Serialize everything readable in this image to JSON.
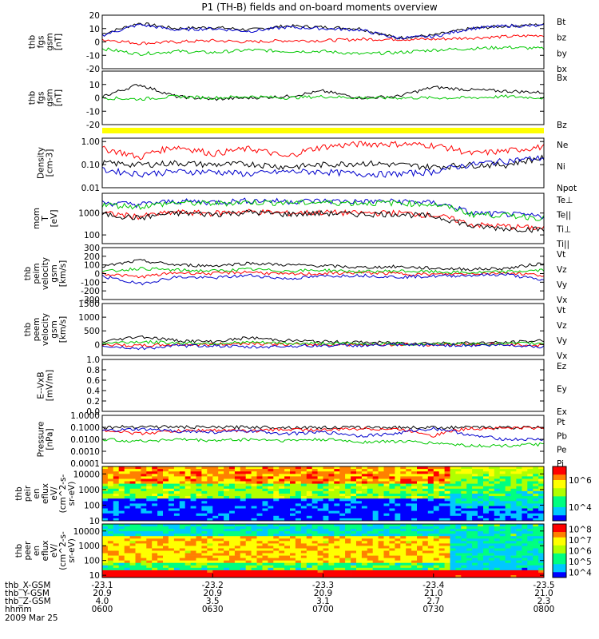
{
  "title": "P1 (TH-B) fields and on-board moments overview",
  "date": "2009 Mar 25",
  "colors": {
    "black": "#000000",
    "red": "#ff0000",
    "green": "#00c800",
    "blue": "#0000cc",
    "yellow": "#ffff00"
  },
  "chart_data": [
    {
      "id": "p1",
      "type": "line",
      "ylabel": [
        "thb",
        "fgs",
        "gsm",
        "[nT]"
      ],
      "ylim": [
        -20,
        20
      ],
      "yticks": [
        -20,
        -10,
        0,
        10,
        20
      ],
      "x": [
        "0600",
        "0610",
        "0620",
        "0630",
        "0640",
        "0650",
        "0700",
        "0710",
        "0720",
        "0730",
        "0740",
        "0750",
        "0800"
      ],
      "series": [
        {
          "name": "Bt",
          "color": "#000000",
          "values": [
            6,
            14,
            10,
            11,
            9,
            12,
            11,
            10,
            3,
            5,
            10,
            12,
            13
          ]
        },
        {
          "name": "bz",
          "color": "#ff0000",
          "values": [
            2,
            -1,
            0,
            1,
            0,
            1,
            1,
            2,
            2,
            2,
            3,
            4,
            5
          ]
        },
        {
          "name": "by",
          "color": "#00c800",
          "values": [
            -5,
            -9,
            -7,
            -8,
            -6,
            -7,
            -7,
            -9,
            -8,
            -6,
            -5,
            -4,
            -5
          ]
        },
        {
          "name": "bx",
          "color": "#0000cc",
          "values": [
            5,
            13,
            9,
            10,
            8,
            11,
            10,
            9,
            3,
            4,
            10,
            12,
            12
          ]
        }
      ]
    },
    {
      "id": "p2",
      "type": "line",
      "ylabel": [
        "thb",
        "fgs",
        "gsm",
        "[nT]"
      ],
      "ylim": [
        -20,
        20
      ],
      "yticks": [
        -20,
        -10,
        0,
        10
      ],
      "x": [
        "0600",
        "0610",
        "0620",
        "0630",
        "0640",
        "0650",
        "0700",
        "0710",
        "0720",
        "0730",
        "0740",
        "0750",
        "0800"
      ],
      "series": [
        {
          "name": "Bx",
          "color": "#000000",
          "values": [
            1,
            10,
            1,
            -1,
            0,
            1,
            5,
            0,
            1,
            8,
            6,
            5,
            4
          ]
        },
        {
          "name": "Bz",
          "color": "#00c800",
          "values": [
            0,
            -1,
            1,
            0,
            1,
            0,
            1,
            0,
            0,
            0,
            0,
            1,
            0
          ]
        }
      ]
    },
    {
      "id": "p3",
      "type": "line",
      "ylabel": [
        "Density",
        "[cm-3]"
      ],
      "log": true,
      "ylim": [
        0.01,
        1.4
      ],
      "yticks": [
        0.01,
        0.1,
        1.0
      ],
      "ytick_labels": [
        "0.01",
        "0.10",
        "1.00"
      ],
      "x": [
        "0600",
        "0610",
        "0620",
        "0630",
        "0640",
        "0650",
        "0700",
        "0710",
        "0720",
        "0730",
        "0740",
        "0750",
        "0800"
      ],
      "series": [
        {
          "name": "Ne",
          "color": "#ff0000",
          "values": [
            0.5,
            0.2,
            0.6,
            0.3,
            0.5,
            0.2,
            0.6,
            0.8,
            0.8,
            0.7,
            0.3,
            0.4,
            0.6
          ]
        },
        {
          "name": "Ni",
          "color": "#000000",
          "values": [
            0.12,
            0.1,
            0.12,
            0.1,
            0.11,
            0.08,
            0.1,
            0.12,
            0.1,
            0.08,
            0.1,
            0.1,
            0.2
          ]
        },
        {
          "name": "Npot",
          "color": "#0000cc",
          "values": [
            0.06,
            0.04,
            0.05,
            0.05,
            0.04,
            0.05,
            0.05,
            0.04,
            0.04,
            0.05,
            0.1,
            0.15,
            0.2
          ]
        }
      ]
    },
    {
      "id": "p4",
      "type": "line",
      "ylabel": [
        "mom",
        "T",
        "[eV]"
      ],
      "log": true,
      "ylim": [
        40,
        8000
      ],
      "yticks": [
        100,
        1000
      ],
      "ytick_labels": [
        "100",
        "1000"
      ],
      "x": [
        "0600",
        "0610",
        "0620",
        "0630",
        "0640",
        "0650",
        "0700",
        "0710",
        "0720",
        "0730",
        "0740",
        "0750",
        "0800"
      ],
      "series": [
        {
          "name": "Te⊥",
          "color": "#ff0000",
          "values": [
            1000,
            700,
            1100,
            1000,
            1200,
            1000,
            1100,
            1000,
            1050,
            800,
            300,
            250,
            200
          ]
        },
        {
          "name": "Te||",
          "color": "#000000",
          "values": [
            900,
            600,
            1000,
            900,
            1100,
            900,
            1000,
            900,
            950,
            700,
            250,
            200,
            180
          ]
        },
        {
          "name": "Ti⊥",
          "color": "#0000cc",
          "values": [
            3000,
            2500,
            3500,
            3200,
            3800,
            3500,
            3600,
            3400,
            3500,
            3000,
            1000,
            900,
            700
          ]
        },
        {
          "name": "Ti||",
          "color": "#00c800",
          "values": [
            2500,
            2000,
            3000,
            2800,
            3200,
            3000,
            3100,
            2900,
            3000,
            2500,
            900,
            800,
            600
          ]
        }
      ]
    },
    {
      "id": "p5",
      "type": "line",
      "ylabel": [
        "thb",
        "peim",
        "velocity",
        "gsm",
        "[km/s]"
      ],
      "ylim": [
        -300,
        300
      ],
      "yticks": [
        -300,
        -200,
        -100,
        0,
        100,
        200,
        300
      ],
      "x": [
        "0600",
        "0610",
        "0620",
        "0630",
        "0640",
        "0650",
        "0700",
        "0710",
        "0720",
        "0730",
        "0740",
        "0750",
        "0800"
      ],
      "series": [
        {
          "name": "Vt",
          "color": "#000000",
          "values": [
            80,
            150,
            100,
            90,
            120,
            100,
            90,
            70,
            80,
            60,
            50,
            60,
            120
          ]
        },
        {
          "name": "Vz",
          "color": "#ff0000",
          "values": [
            0,
            -40,
            10,
            0,
            20,
            -10,
            0,
            10,
            0,
            -10,
            0,
            10,
            -20
          ]
        },
        {
          "name": "Vy",
          "color": "#00c800",
          "values": [
            20,
            60,
            40,
            30,
            50,
            30,
            40,
            20,
            30,
            20,
            10,
            20,
            40
          ]
        },
        {
          "name": "Vx",
          "color": "#0000cc",
          "values": [
            -30,
            -120,
            -40,
            -50,
            -20,
            -60,
            -30,
            -20,
            -40,
            -30,
            -20,
            -10,
            -80
          ]
        }
      ]
    },
    {
      "id": "p6",
      "type": "line",
      "ylabel": [
        "thb",
        "peem",
        "velocity",
        "gsm",
        "[km/s]"
      ],
      "ylim": [
        -400,
        1500
      ],
      "yticks": [
        0,
        500,
        1000,
        1500
      ],
      "x": [
        "0600",
        "0610",
        "0620",
        "0630",
        "0640",
        "0650",
        "0700",
        "0710",
        "0720",
        "0730",
        "0740",
        "0750",
        "0800"
      ],
      "series": [
        {
          "name": "Vt",
          "color": "#000000",
          "values": [
            100,
            300,
            150,
            100,
            250,
            150,
            100,
            80,
            60,
            50,
            60,
            70,
            150
          ]
        },
        {
          "name": "Vz",
          "color": "#ff0000",
          "values": [
            0,
            -50,
            0,
            0,
            50,
            0,
            0,
            0,
            0,
            0,
            0,
            0,
            -30
          ]
        },
        {
          "name": "Vy",
          "color": "#00c800",
          "values": [
            50,
            100,
            60,
            40,
            80,
            40,
            40,
            30,
            20,
            20,
            20,
            30,
            50
          ]
        },
        {
          "name": "Vx",
          "color": "#0000cc",
          "values": [
            -50,
            -150,
            -50,
            -40,
            -100,
            -60,
            -40,
            -30,
            -20,
            -20,
            -30,
            -20,
            -80
          ]
        }
      ]
    },
    {
      "id": "p7",
      "type": "line",
      "ylabel": [
        "E--VxB",
        "[mV/m]"
      ],
      "ylim": [
        0,
        1.0
      ],
      "yticks": [
        0,
        0.2,
        0.4,
        0.6,
        0.8,
        1.0
      ],
      "ytick_labels": [
        "0.0",
        "0.2",
        "0.4",
        "0.6",
        "0.8",
        "1.0"
      ],
      "x": [],
      "series": [
        {
          "name": "Ez",
          "color": "#ff0000",
          "values": []
        },
        {
          "name": "Ey",
          "color": "#00c800",
          "values": []
        },
        {
          "name": "Ex",
          "color": "#0000cc",
          "values": []
        }
      ]
    },
    {
      "id": "p8",
      "type": "line",
      "ylabel": [
        "Pressure",
        "[nPa]"
      ],
      "log": true,
      "ylim": [
        0.0001,
        1.0
      ],
      "yticks": [
        0.0001,
        0.001,
        0.01,
        0.1,
        1.0
      ],
      "ytick_labels": [
        "0.0001",
        "0.0010",
        "0.0100",
        "0.1000",
        "1.0000"
      ],
      "x": [
        "0600",
        "0610",
        "0620",
        "0630",
        "0640",
        "0650",
        "0700",
        "0710",
        "0720",
        "0730",
        "0740",
        "0750",
        "0800"
      ],
      "series": [
        {
          "name": "Pt",
          "color": "#000000",
          "values": [
            0.1,
            0.12,
            0.11,
            0.1,
            0.11,
            0.1,
            0.1,
            0.1,
            0.1,
            0.1,
            0.1,
            0.1,
            0.1
          ]
        },
        {
          "name": "Pb",
          "color": "#ff0000",
          "values": [
            0.06,
            0.03,
            0.05,
            0.06,
            0.05,
            0.07,
            0.06,
            0.08,
            0.07,
            0.02,
            0.08,
            0.09,
            0.09
          ]
        },
        {
          "name": "Pe",
          "color": "#00c800",
          "values": [
            0.01,
            0.007,
            0.01,
            0.008,
            0.01,
            0.008,
            0.01,
            0.006,
            0.007,
            0.005,
            0.003,
            0.003,
            0.004
          ]
        },
        {
          "name": "Pi",
          "color": "#0000cc",
          "values": [
            0.05,
            0.07,
            0.05,
            0.04,
            0.05,
            0.03,
            0.04,
            0.02,
            0.03,
            0.08,
            0.02,
            0.01,
            0.01
          ]
        }
      ]
    },
    {
      "id": "p9",
      "type": "heatmap",
      "ylabel": [
        "thb",
        "peir",
        "en",
        "eflux",
        "eV/",
        "(cm^2-s-",
        "sr-eV)"
      ],
      "log": true,
      "ylim": [
        10,
        30000
      ],
      "yticks": [
        10,
        100,
        1000,
        10000
      ],
      "ytick_labels": [
        "10",
        "100",
        "1000",
        "10000"
      ],
      "colorbar_ticks": [
        "10^4",
        "10^6"
      ]
    },
    {
      "id": "p10",
      "type": "heatmap",
      "ylabel": [
        "thb",
        "peer",
        "en",
        "eflux",
        "eV/",
        "(cm^2-s-",
        "sr-eV)"
      ],
      "log": true,
      "ylim": [
        7,
        30000
      ],
      "yticks": [
        10,
        100,
        1000,
        10000
      ],
      "ytick_labels": [
        "10",
        "100",
        "1000",
        "10000"
      ],
      "colorbar_ticks": [
        "10^4",
        "10^5",
        "10^6",
        "10^7",
        "10^8"
      ]
    }
  ],
  "time_axis": {
    "row_labels": [
      "thb_X-GSM",
      "thb_Y-GSM",
      "thb_Z-GSM",
      "hhmm"
    ],
    "columns": [
      {
        "x": "-23.1",
        "y": "20.9",
        "z": "4.0",
        "t": "0600"
      },
      {
        "x": "-23.2",
        "y": "20.9",
        "z": "3.5",
        "t": "0630"
      },
      {
        "x": "-23.3",
        "y": "20.9",
        "z": "3.1",
        "t": "0700"
      },
      {
        "x": "-23.4",
        "y": "21.0",
        "z": "2.7",
        "t": "0730"
      },
      {
        "x": "-23.5",
        "y": "21.0",
        "z": "2.3",
        "t": "0800"
      }
    ]
  }
}
